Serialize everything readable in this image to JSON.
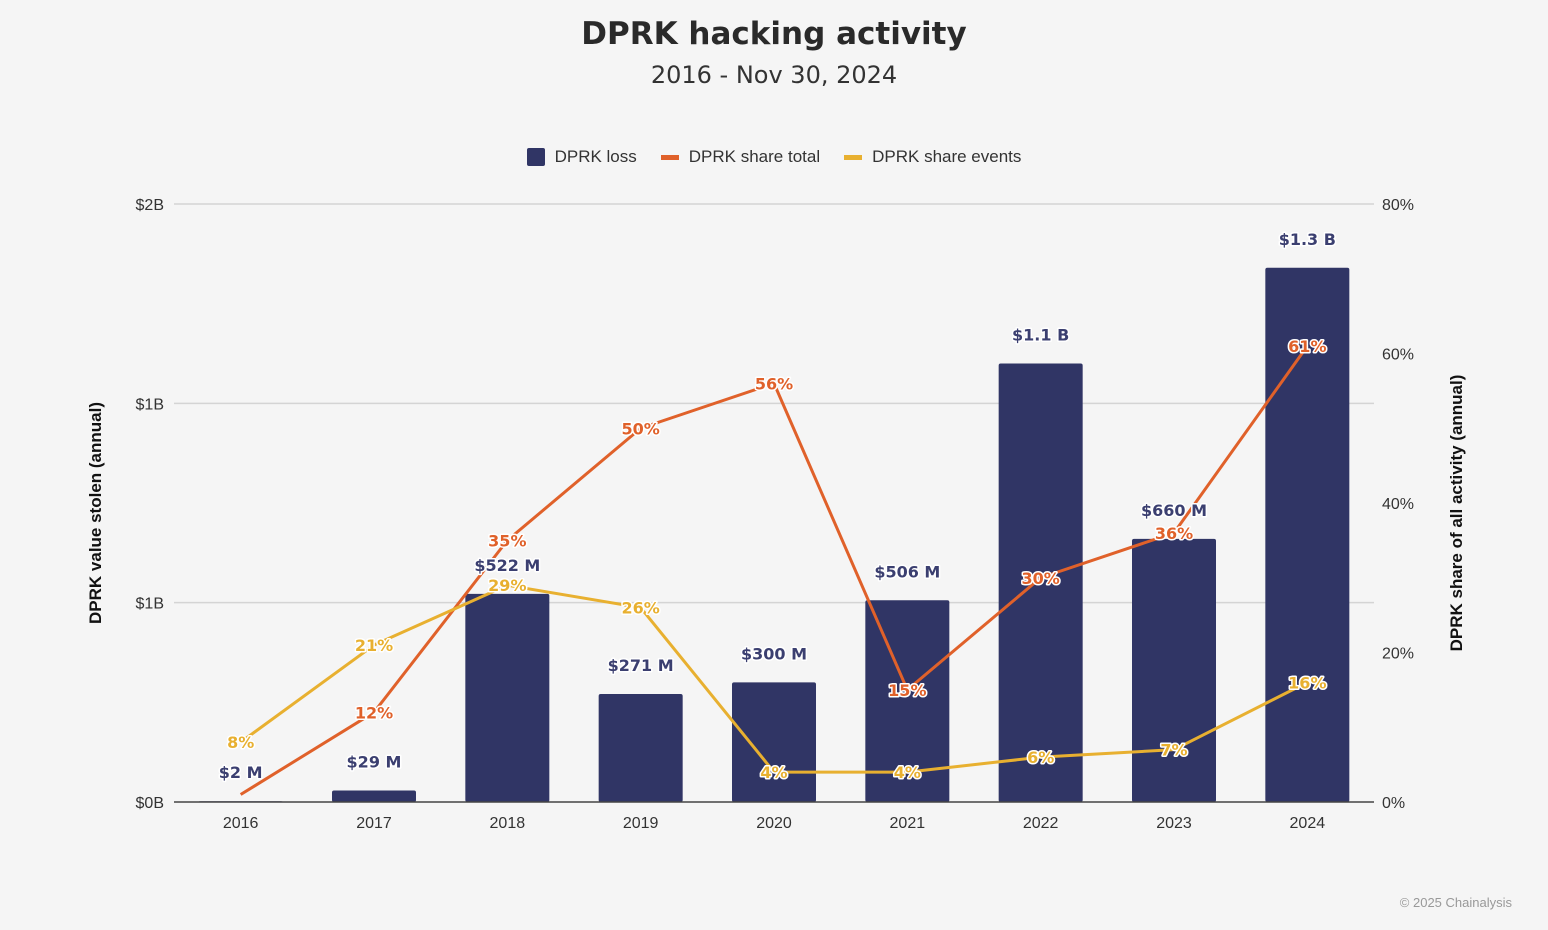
{
  "chart_data": {
    "type": "bar",
    "title": "DPRK hacking activity",
    "subtitle": "2016 - Nov 30, 2024",
    "categories": [
      "2016",
      "2017",
      "2018",
      "2019",
      "2020",
      "2021",
      "2022",
      "2023",
      "2024"
    ],
    "left_axis": {
      "label": "DPRK value stolen (annual)",
      "unit": "USD millions",
      "range": [
        0,
        1500
      ],
      "ticks": [
        0,
        500,
        1000,
        1500
      ],
      "tick_labels": [
        "$0B",
        "$1B",
        "$1B",
        "$2B"
      ]
    },
    "right_axis": {
      "label": "DPRK share of all activity (annual)",
      "unit": "percent",
      "range": [
        0,
        80
      ],
      "ticks": [
        0,
        20,
        40,
        60,
        80
      ],
      "tick_labels": [
        "0%",
        "20%",
        "40%",
        "60%",
        "80%"
      ]
    },
    "grid": true,
    "legend_position": "top",
    "series": [
      {
        "name": "DPRK loss",
        "type": "bar",
        "axis": "left",
        "color": "#303565",
        "values": [
          2,
          29,
          522,
          271,
          300,
          506,
          1100,
          660,
          1340
        ],
        "labels": [
          "$2  M",
          "$29  M",
          "$522  M",
          "$271  M",
          "$300  M",
          "$506  M",
          "$1.1 B",
          "$660  M",
          "$1.3 B"
        ]
      },
      {
        "name": "DPRK share total",
        "type": "line",
        "axis": "right",
        "color": "#e0612a",
        "values": [
          1,
          12,
          35,
          50,
          56,
          15,
          30,
          36,
          61
        ],
        "labels": [
          "",
          "12%",
          "35%",
          "50%",
          "56%",
          "15%",
          "30%",
          "36%",
          "61%"
        ]
      },
      {
        "name": "DPRK share events",
        "type": "line",
        "axis": "right",
        "color": "#e8b030",
        "values": [
          8,
          21,
          29,
          26,
          4,
          4,
          6,
          7,
          16
        ],
        "labels": [
          "8%",
          "21%",
          "29%",
          "26%",
          "4%",
          "4%",
          "6%",
          "7%",
          "16%"
        ]
      }
    ]
  },
  "credit": "© 2025 Chainalysis"
}
